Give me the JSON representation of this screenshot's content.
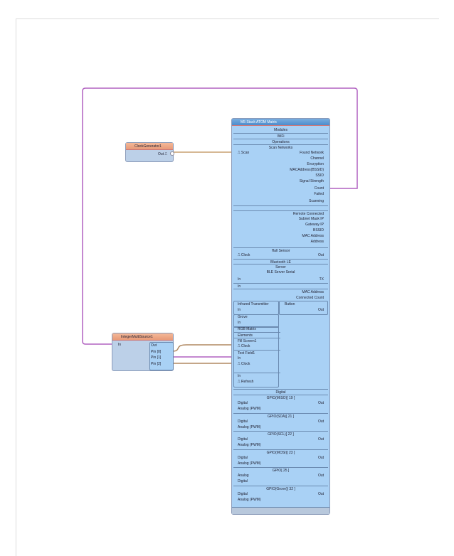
{
  "colors": {
    "wire_clock": "#c8a070",
    "wire_int": "#b060c0",
    "component": "#a9d1f5",
    "header_orange": "#e89a78"
  },
  "clock_gen": {
    "title": "ClockGenerator1",
    "out": "Out"
  },
  "int_source": {
    "title": "IntegerMultiSource1",
    "in": "In",
    "out": "Out",
    "pins": [
      "Pin [0]",
      "Pin [1]",
      "Pin [2]"
    ]
  },
  "main": {
    "title": "M5 Stack ATOM Matrix",
    "top": [
      "Modules",
      "WiFi",
      "Operations",
      "Scan Networks"
    ],
    "scan_in": "Scan",
    "scan_outs": [
      "Found Network",
      "Channel",
      "Encryption",
      "MACAddress(BSSID)",
      "SSID",
      "Signal Strength",
      "Count",
      "Failed",
      "Scanning"
    ],
    "wifi_outs": [
      "Remote Connected",
      "Subnet Mask IP",
      "Gateway IP",
      "BSSID",
      "MAC Address",
      "Address"
    ],
    "hall": {
      "title": "Hall Sensor",
      "clock": "Clock",
      "out": "Out"
    },
    "ble": {
      "title": "Bluetooth LE",
      "server": "Server",
      "serial": "BLE Server Serial",
      "in1": "In",
      "tx": "TX",
      "in2": "In",
      "mac": "MAC Address",
      "count": "Connected Count"
    },
    "ir": {
      "title": "Infrared Transmitter",
      "in": "In"
    },
    "button": {
      "title": "Button",
      "out": "Out"
    },
    "grove": {
      "title": "Grove",
      "in": "In"
    },
    "rgb": {
      "title": "RGB Matrix",
      "elements": "Elements",
      "fill": "Fill Screen1",
      "fill_clock": "Clock",
      "text": "Text Field1",
      "text_in": "In",
      "text_clock": "Clock",
      "in": "In",
      "refresh": "Refresh"
    },
    "digital": "Digital",
    "gpio": [
      {
        "title": "GPIO(MISO)[ 19 ]",
        "a": "Digital",
        "b": "Analog (PWM)",
        "out": "Out"
      },
      {
        "title": "GPIO(SDA)[ 21 ]",
        "a": "Digital",
        "b": "Analog (PWM)",
        "out": "Out"
      },
      {
        "title": "GPIO(SCL)[ 22 ]",
        "a": "Digital",
        "b": "Analog (PWM)",
        "out": "Out"
      },
      {
        "title": "GPIO(MOSI)[ 23 ]",
        "a": "Digital",
        "b": "Analog (PWM)",
        "out": "Out"
      },
      {
        "title": "GPIO[ 25 ]",
        "a": "Analog",
        "b": "Digital",
        "out": "Out"
      },
      {
        "title": "GPIO(Grove)[ 32 ]",
        "a": "Digital",
        "b": "Analog (PWM)",
        "out": "Out"
      }
    ]
  }
}
